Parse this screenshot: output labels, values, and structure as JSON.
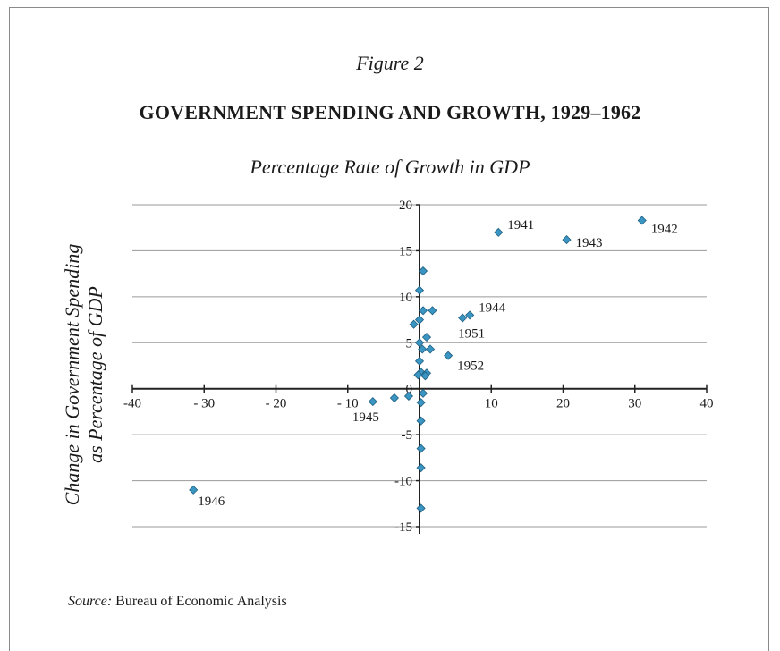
{
  "figure_label": "Figure 2",
  "title": "GOVERNMENT SPENDING AND GROWTH, 1929–1962",
  "source": {
    "label": "Source:",
    "text": "Bureau of Economic Analysis"
  },
  "chart_data": {
    "type": "scatter",
    "title": "Percentage Rate of Growth in GDP",
    "xlabel": "Percentage Rate of Growth in GDP",
    "ylabel": "Change in Government Spending as Percentage of GDP",
    "ylabel_lines": [
      "Change in Government Spending",
      "as Percentage of GDP"
    ],
    "xlim": [
      -40,
      40
    ],
    "ylim": [
      -15,
      20
    ],
    "x_ticks": [
      -40,
      -30,
      -20,
      -10,
      10,
      20,
      30,
      40
    ],
    "x_tick_labels": [
      "-40",
      "- 30",
      "- 20",
      "- 10",
      "10",
      "20",
      "30",
      "40"
    ],
    "y_ticks": [
      20,
      15,
      10,
      5,
      0,
      -5,
      -10,
      -15
    ],
    "y_tick_labels": [
      "20",
      "15",
      "10",
      "5",
      "0",
      "-5",
      "-10",
      "-15"
    ],
    "grid": "horizontal",
    "marker_color": "#3a95c2",
    "points": [
      {
        "x": 11,
        "y": 17,
        "label": "1941"
      },
      {
        "x": 31,
        "y": 18.3,
        "label": "1942"
      },
      {
        "x": 20.5,
        "y": 16.2,
        "label": "1943"
      },
      {
        "x": 7,
        "y": 8,
        "label": "1944"
      },
      {
        "x": -6.5,
        "y": -1.4,
        "label": "1945"
      },
      {
        "x": -31.5,
        "y": -11,
        "label": "1946"
      },
      {
        "x": 6,
        "y": 7.7,
        "label": "1951"
      },
      {
        "x": 4,
        "y": 3.6,
        "label": "1952"
      },
      {
        "x": 0.5,
        "y": 12.8
      },
      {
        "x": 0,
        "y": 10.7
      },
      {
        "x": 0.5,
        "y": 8.5
      },
      {
        "x": 1.8,
        "y": 8.5
      },
      {
        "x": 0,
        "y": 7.5
      },
      {
        "x": -0.8,
        "y": 7
      },
      {
        "x": 1,
        "y": 5.6
      },
      {
        "x": 0,
        "y": 5
      },
      {
        "x": 0.4,
        "y": 4.3
      },
      {
        "x": 1.5,
        "y": 4.3
      },
      {
        "x": 0,
        "y": 3
      },
      {
        "x": 0.2,
        "y": 1.8
      },
      {
        "x": 1,
        "y": 1.7
      },
      {
        "x": -0.2,
        "y": 1.5
      },
      {
        "x": 0.8,
        "y": 1.4
      },
      {
        "x": -3.5,
        "y": -1
      },
      {
        "x": -1.5,
        "y": -0.8
      },
      {
        "x": 0.5,
        "y": -0.5
      },
      {
        "x": 0.2,
        "y": -1.5
      },
      {
        "x": 0.2,
        "y": -3.5
      },
      {
        "x": 0.2,
        "y": -6.5
      },
      {
        "x": 0.2,
        "y": -8.6
      },
      {
        "x": 0.2,
        "y": -13
      }
    ]
  }
}
